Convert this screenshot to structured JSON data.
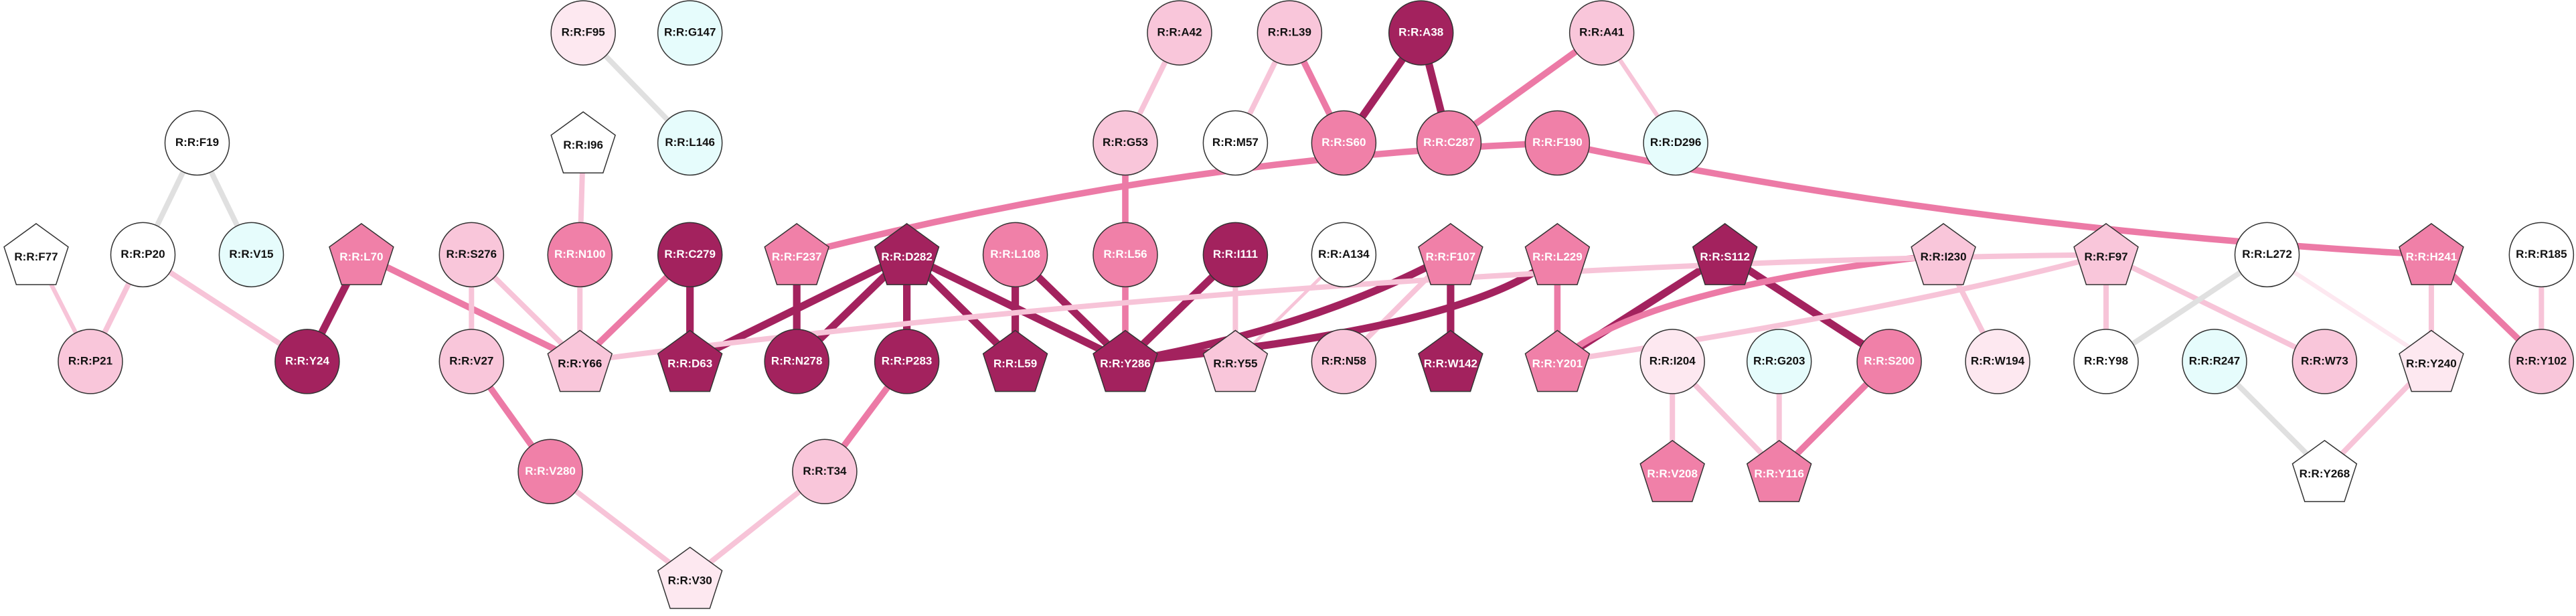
{
  "nodes": [
    "R:R:F95",
    "R:R:G147",
    "R:R:A42",
    "R:R:L39",
    "R:R:A38",
    "R:R:A41",
    "R:R:I96",
    "R:R:L146",
    "R:R:F19",
    "R:R:G53",
    "R:R:M57",
    "R:R:S60",
    "R:R:C287",
    "R:R:F190",
    "R:R:D296",
    "R:R:F77",
    "R:R:P20",
    "R:R:V15",
    "R:R:L70",
    "R:R:S276",
    "R:R:N100",
    "R:R:C279",
    "R:R:F237",
    "R:R:D282",
    "R:R:L108",
    "R:R:L56",
    "R:R:I111",
    "R:R:A134",
    "R:R:F107",
    "R:R:L229",
    "R:R:S112",
    "R:R:I230",
    "R:R:F97",
    "R:R:L272",
    "R:R:H241",
    "R:R:R185",
    "R:R:P21",
    "R:R:Y24",
    "R:R:V27",
    "R:R:Y66",
    "R:R:D63",
    "R:R:N278",
    "R:R:P283",
    "R:R:L59",
    "R:R:Y286",
    "R:R:Y55",
    "R:R:N58",
    "R:R:W142",
    "R:R:Y201",
    "R:R:I204",
    "R:R:G203",
    "R:R:S200",
    "R:R:W194",
    "R:R:Y98",
    "R:R:R247",
    "R:R:W73",
    "R:R:Y240",
    "R:R:Y102",
    "R:R:V280",
    "R:R:T34",
    "R:R:V208",
    "R:R:Y116",
    "R:R:Y268",
    "R:R:V30"
  ]
}
